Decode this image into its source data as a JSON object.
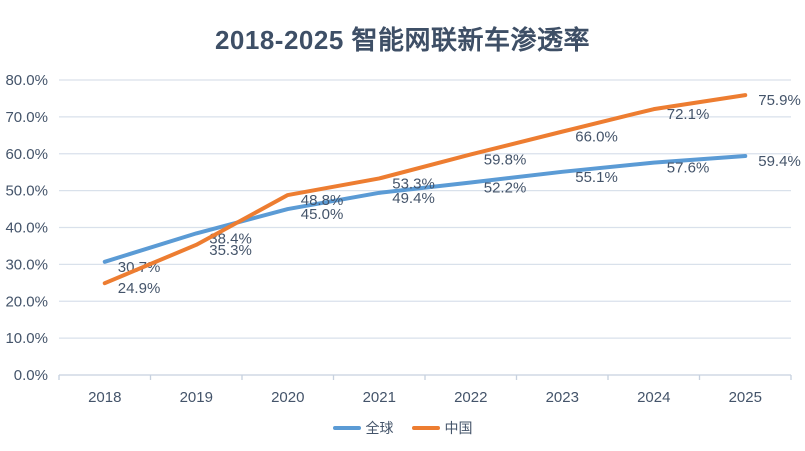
{
  "chart_data": {
    "type": "line",
    "title": "2018-2025 智能网联新车渗透率",
    "categories": [
      "2018",
      "2019",
      "2020",
      "2021",
      "2022",
      "2023",
      "2024",
      "2025"
    ],
    "series": [
      {
        "name": "全球",
        "color": "#5B9BD5",
        "values": [
          30.7,
          38.4,
          45.0,
          49.4,
          52.2,
          55.1,
          57.6,
          59.4
        ]
      },
      {
        "name": "中国",
        "color": "#ED7D31",
        "values": [
          24.9,
          35.3,
          48.8,
          53.3,
          59.8,
          66.0,
          72.1,
          75.9
        ]
      }
    ],
    "data_label_format": "percent_one_decimal",
    "y_axis": {
      "min": 0,
      "max": 80,
      "step": 10,
      "tick_labels": [
        "0.0%",
        "10.0%",
        "20.0%",
        "30.0%",
        "40.0%",
        "50.0%",
        "60.0%",
        "70.0%",
        "80.0%"
      ]
    },
    "x_axis": {
      "tick_labels": [
        "2018",
        "2019",
        "2020",
        "2021",
        "2022",
        "2023",
        "2024",
        "2025"
      ]
    },
    "grid": true,
    "legend_position": "bottom"
  },
  "colors": {
    "text": "#44546A",
    "title": "#3E4F66",
    "gridline": "#D9E1EB",
    "axis_line": "#C7D1DF",
    "background": "#FFFFFF",
    "series_global": "#5B9BD5",
    "series_china": "#ED7D31"
  }
}
